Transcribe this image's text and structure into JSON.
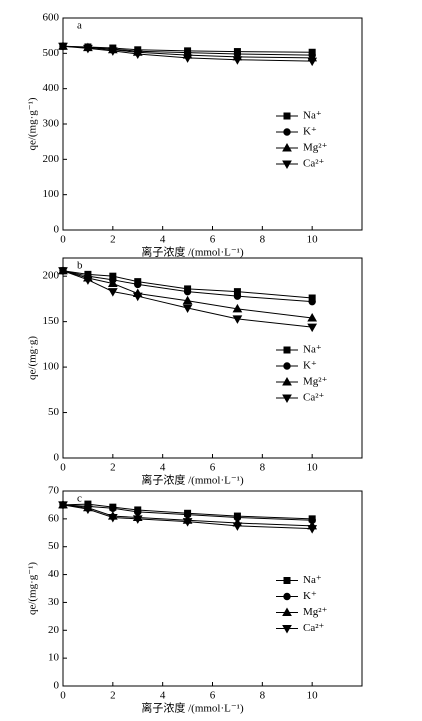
{
  "chart_data": [
    {
      "type": "line",
      "title": "a",
      "x_label": "离子浓度 /(mmol·L⁻¹)",
      "y_label": "qe/(mg·g⁻¹)",
      "x": [
        0,
        1,
        2,
        3,
        5,
        7,
        10
      ],
      "xlim": [
        0,
        12
      ],
      "xticks": [
        0,
        2,
        4,
        6,
        8,
        10
      ],
      "ylim": [
        0,
        600
      ],
      "yticks": [
        0,
        100,
        200,
        300,
        400,
        500,
        600
      ],
      "legend": "center right",
      "series": [
        {
          "name": "Na⁺",
          "color": "#000000",
          "marker": "square",
          "values": [
            520,
            518,
            515,
            510,
            507,
            505,
            503
          ]
        },
        {
          "name": "K⁺",
          "color": "#000000",
          "marker": "circle",
          "values": [
            520,
            517,
            512,
            506,
            502,
            498,
            495
          ]
        },
        {
          "name": "Mg²⁺",
          "color": "#000000",
          "marker": "triangle-up",
          "values": [
            520,
            516,
            510,
            503,
            495,
            490,
            487
          ]
        },
        {
          "name": "Ca²⁺",
          "color": "#000000",
          "marker": "triangle-down",
          "values": [
            520,
            514,
            507,
            498,
            487,
            482,
            478
          ]
        }
      ]
    },
    {
      "type": "line",
      "title": "b",
      "x_label": "离子浓度 /(mmol·L⁻¹)",
      "y_label": "qe/(mg·g)",
      "x": [
        0,
        1,
        2,
        3,
        5,
        7,
        10
      ],
      "xlim": [
        0,
        12
      ],
      "xticks": [
        0,
        2,
        4,
        6,
        8,
        10
      ],
      "ylim": [
        0,
        220
      ],
      "yticks": [
        0,
        50,
        100,
        150,
        200
      ],
      "legend": "center right",
      "series": [
        {
          "name": "Na⁺",
          "color": "#000000",
          "marker": "square",
          "values": [
            206,
            202,
            200,
            194,
            186,
            183,
            176
          ]
        },
        {
          "name": "K⁺",
          "color": "#000000",
          "marker": "circle",
          "values": [
            206,
            200,
            196,
            191,
            183,
            178,
            172
          ]
        },
        {
          "name": "Mg²⁺",
          "color": "#000000",
          "marker": "triangle-up",
          "values": [
            206,
            198,
            192,
            181,
            173,
            164,
            154
          ]
        },
        {
          "name": "Ca²⁺",
          "color": "#000000",
          "marker": "triangle-down",
          "values": [
            206,
            196,
            183,
            178,
            165,
            153,
            144
          ]
        }
      ]
    },
    {
      "type": "line",
      "title": "c",
      "x_label": "离子浓度 /(mmol·L⁻¹)",
      "y_label": "qe/(mg·g⁻¹)",
      "x": [
        0,
        1,
        2,
        3,
        5,
        7,
        10
      ],
      "xlim": [
        0,
        12
      ],
      "xticks": [
        0,
        2,
        4,
        6,
        8,
        10
      ],
      "ylim": [
        0,
        70
      ],
      "yticks": [
        0,
        10,
        20,
        30,
        40,
        50,
        60,
        70
      ],
      "legend": "center right",
      "series": [
        {
          "name": "Na⁺",
          "color": "#000000",
          "marker": "square",
          "values": [
            65,
            65.3,
            64.2,
            63.2,
            62,
            61,
            60
          ]
        },
        {
          "name": "K⁺",
          "color": "#000000",
          "marker": "circle",
          "values": [
            65,
            64.5,
            63.8,
            62.5,
            61.5,
            60.5,
            59.5
          ]
        },
        {
          "name": "Mg²⁺",
          "color": "#000000",
          "marker": "triangle-up",
          "values": [
            65,
            64,
            61,
            60.5,
            59.5,
            58.5,
            57.5
          ]
        },
        {
          "name": "Ca²⁺",
          "color": "#000000",
          "marker": "triangle-down",
          "values": [
            65,
            63.5,
            60.5,
            60,
            59,
            57.5,
            56.5
          ]
        }
      ]
    }
  ]
}
